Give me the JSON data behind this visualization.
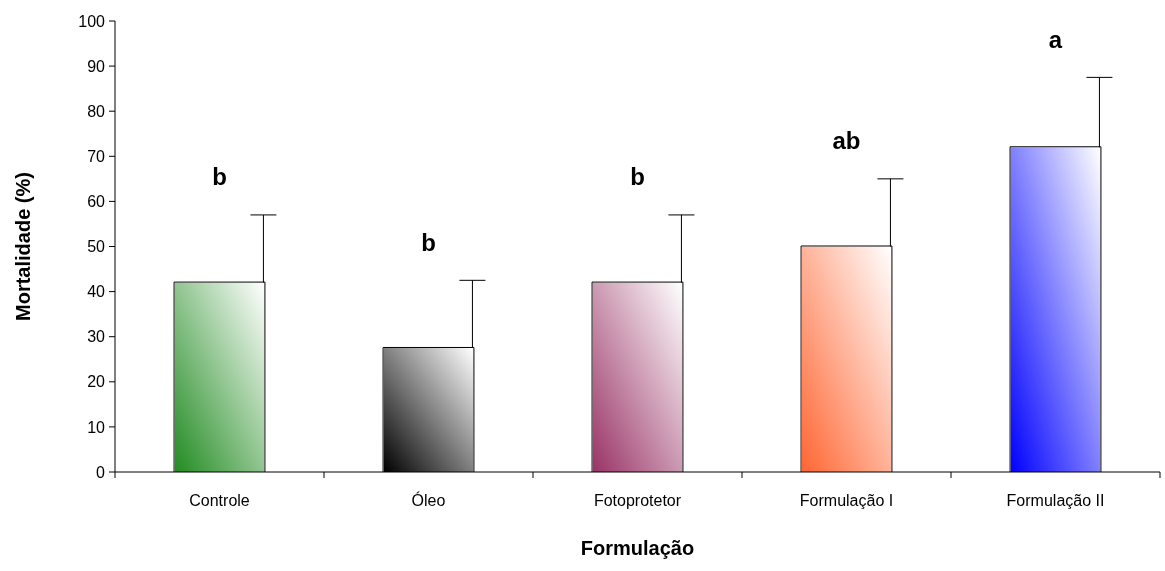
{
  "chart_data": {
    "type": "bar",
    "xlabel": "Formulação",
    "ylabel": "Mortalidade (%)",
    "categories": [
      "Controle",
      "Óleo",
      "Fotoprotetor",
      "Formulação I",
      "Formulação II"
    ],
    "values": [
      42,
      27.5,
      42,
      50,
      72
    ],
    "colors": [
      "#228b22",
      "#000000",
      "#993366",
      "#ff6633",
      "#0000ff"
    ],
    "errors": [
      [
        42,
        57
      ],
      [
        27.5,
        42.5
      ],
      [
        42,
        57
      ],
      [
        50,
        65
      ],
      [
        72,
        87.5
      ]
    ],
    "ylim": [
      0,
      100
    ],
    "yticks": [
      0,
      10,
      20,
      30,
      40,
      50,
      60,
      70,
      80,
      90,
      100
    ],
    "annotations": [
      "b",
      "b",
      "b",
      "ab",
      "a"
    ]
  }
}
